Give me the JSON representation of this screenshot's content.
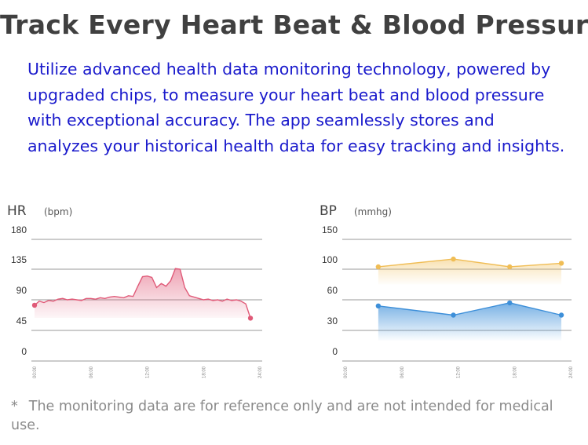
{
  "title": "Track Every Heart Beat & Blood Pressure",
  "description": "Utilize advanced health data monitoring technology, powered by upgraded chips, to measure your heart beat and blood pressure with exceptional accuracy. The app seamlessly stores and analyzes your historical health data for easy tracking and insights.",
  "footnote": {
    "star": "*",
    "text": "The monitoring data are for reference only and are not intended for medical use."
  },
  "colors": {
    "hr_line": "#e05a78",
    "hr_fill": "#f7c2cc",
    "bp_high": "#f0bd55",
    "bp_low": "#3d8fd9"
  },
  "chart_data": [
    {
      "type": "area",
      "label": "HR",
      "unit": "(bpm)",
      "ylim": [
        0,
        180
      ],
      "yticks": [
        "0",
        "45",
        "90",
        "135",
        "180"
      ],
      "x_ticks": [
        "00:00",
        "06:00",
        "12:00",
        "18:00",
        "24:00"
      ],
      "grid": true,
      "series": [
        {
          "x": [
            0,
            0.5,
            1,
            1.5,
            2,
            2.5,
            3,
            3.5,
            4,
            4.5,
            5,
            5.5,
            6,
            6.5,
            7,
            7.5,
            8,
            8.5,
            9,
            9.5,
            10,
            10.5,
            11,
            11.5,
            12,
            12.5,
            13,
            13.5,
            14,
            14.5,
            15,
            15.5,
            16,
            16.5,
            17,
            17.5,
            18,
            18.5,
            19,
            19.5,
            20,
            20.5,
            21,
            21.5,
            22,
            22.5,
            23
          ],
          "values": [
            82,
            88,
            86,
            89,
            88,
            91,
            92,
            90,
            91,
            90,
            89,
            92,
            92,
            91,
            93,
            92,
            94,
            95,
            94,
            93,
            96,
            95,
            110,
            124,
            125,
            123,
            108,
            114,
            110,
            118,
            136,
            135,
            108,
            96,
            94,
            92,
            90,
            91,
            89,
            90,
            88,
            91,
            89,
            90,
            88,
            84,
            63
          ]
        }
      ]
    },
    {
      "type": "area",
      "label": "BP",
      "unit": "(mmhg)",
      "ylim": [
        0,
        150
      ],
      "yticks": [
        "0",
        "30",
        "60",
        "100",
        "150"
      ],
      "x_ticks": [
        "00:00",
        "06:00",
        "12:00",
        "18:00",
        "24:00"
      ],
      "grid": true,
      "series": [
        {
          "x": [
            3.5,
            11.5,
            17.5,
            23
          ],
          "values": [
            104,
            117,
            104,
            110
          ]
        },
        {
          "x": [
            3.5,
            11.5,
            17.5,
            23
          ],
          "values": [
            54,
            45,
            57,
            45
          ]
        }
      ]
    }
  ]
}
